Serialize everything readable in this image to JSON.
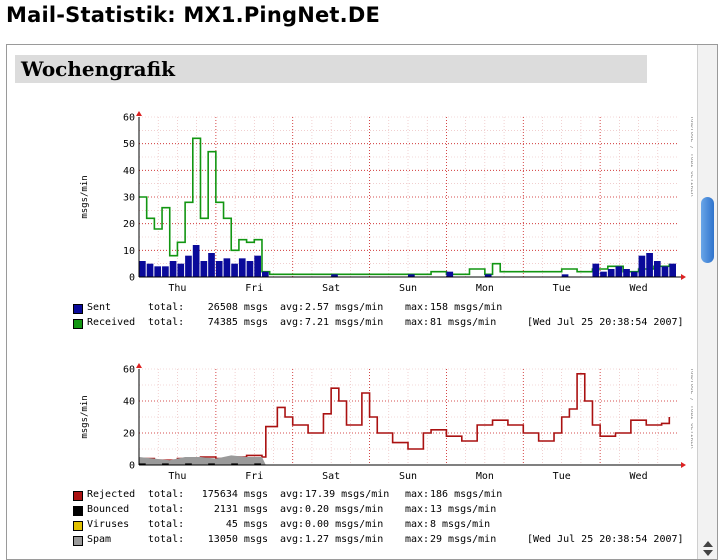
{
  "page": {
    "title": "Mail-Statistik: MX1.PingNet.DE",
    "section_heading": "Wochengrafik"
  },
  "graphs": [
    {
      "ylabel": "msgs/min",
      "watermark": "RRDTOOL / TOBI OETIKER",
      "yticks": [
        "0",
        "10",
        "20",
        "30",
        "40",
        "50",
        "60"
      ],
      "xticks": [
        "Thu",
        "Fri",
        "Sat",
        "Sun",
        "Mon",
        "Tue",
        "Wed"
      ],
      "legend": [
        {
          "name": "Sent",
          "color": "#0a0a9a",
          "total": "26508 msgs",
          "avg": "2.57 msgs/min",
          "max": "158 msgs/min",
          "timestamp": ""
        },
        {
          "name": "Received",
          "color": "#129612",
          "total": "74385 msgs",
          "avg": "7.21 msgs/min",
          "max": "81 msgs/min",
          "timestamp": "[Wed Jul 25 20:38:54 2007]"
        }
      ]
    },
    {
      "ylabel": "msgs/min",
      "watermark": "RRDTOOL / TOBI OETIKER",
      "yticks": [
        "0",
        "20",
        "40",
        "60"
      ],
      "xticks": [
        "Thu",
        "Fri",
        "Sat",
        "Sun",
        "Mon",
        "Tue",
        "Wed"
      ],
      "legend": [
        {
          "name": "Rejected",
          "color": "#aa1111",
          "total": "175634 msgs",
          "avg": "17.39 msgs/min",
          "max": "186 msgs/min",
          "timestamp": ""
        },
        {
          "name": "Bounced",
          "color": "#000000",
          "total": "2131 msgs",
          "avg": "0.20 msgs/min",
          "max": "13 msgs/min",
          "timestamp": ""
        },
        {
          "name": "Viruses",
          "color": "#e0c000",
          "total": "45 msgs",
          "avg": "0.00 msgs/min",
          "max": "8 msgs/min",
          "timestamp": ""
        },
        {
          "name": "Spam",
          "color": "#9a9a9a",
          "total": "13050 msgs",
          "avg": "1.27 msgs/min",
          "max": "29 msgs/min",
          "timestamp": "[Wed Jul 25 20:38:54 2007]"
        }
      ]
    }
  ],
  "legend_labels": {
    "total": "total:",
    "avg": "avg:",
    "max": "max:"
  },
  "chart_data": [
    {
      "type": "area",
      "xlabel": "",
      "ylabel": "msgs/min",
      "ylim": [
        0,
        60
      ],
      "grid": true,
      "legend": "bottom",
      "x_day_ticks": [
        "Thu",
        "Fri",
        "Sat",
        "Sun",
        "Mon",
        "Tue",
        "Wed"
      ],
      "x_day_tick_position": [
        0.5,
        1.5,
        2.5,
        3.5,
        4.5,
        5.5,
        6.5
      ],
      "series": [
        {
          "name": "Received",
          "color": "#129612",
          "style": "line",
          "x": [
            0,
            0.1,
            0.2,
            0.3,
            0.4,
            0.5,
            0.6,
            0.7,
            0.8,
            0.9,
            1.0,
            1.1,
            1.2,
            1.3,
            1.4,
            1.5,
            1.6,
            1.7,
            1.8,
            1.9,
            2.0,
            2.2,
            2.5,
            3.0,
            3.5,
            3.8,
            4.0,
            4.3,
            4.5,
            4.6,
            4.7,
            4.9,
            5.2,
            5.5,
            5.7,
            5.9,
            6.1,
            6.3,
            6.5,
            6.7,
            6.9
          ],
          "values": [
            30,
            22,
            18,
            26,
            8,
            13,
            28,
            52,
            22,
            47,
            28,
            22,
            10,
            14,
            13,
            14,
            2,
            1,
            1,
            1,
            1,
            1,
            1,
            1,
            1,
            2,
            1,
            3,
            1,
            5,
            2,
            2,
            2,
            3,
            2,
            3,
            4,
            2,
            3,
            4,
            5
          ]
        },
        {
          "name": "Sent",
          "color": "#0a0a9a",
          "style": "bars",
          "x": [
            0,
            0.1,
            0.2,
            0.3,
            0.4,
            0.5,
            0.6,
            0.7,
            0.8,
            0.9,
            1.0,
            1.1,
            1.2,
            1.3,
            1.4,
            1.5,
            1.6,
            1.8,
            2.0,
            2.5,
            3.0,
            3.5,
            4.0,
            4.5,
            5.0,
            5.5,
            5.9,
            6.0,
            6.1,
            6.2,
            6.3,
            6.4,
            6.5,
            6.6,
            6.7,
            6.8,
            6.9
          ],
          "values": [
            6,
            5,
            4,
            4,
            6,
            5,
            8,
            12,
            6,
            9,
            6,
            7,
            5,
            7,
            6,
            8,
            2,
            0,
            0,
            1,
            0,
            1,
            2,
            1,
            0,
            1,
            5,
            2,
            3,
            4,
            3,
            2,
            8,
            9,
            6,
            4,
            5
          ]
        }
      ]
    },
    {
      "type": "area",
      "xlabel": "",
      "ylabel": "msgs/min",
      "ylim": [
        0,
        60
      ],
      "grid": true,
      "legend": "bottom",
      "x_day_ticks": [
        "Thu",
        "Fri",
        "Sat",
        "Sun",
        "Mon",
        "Tue",
        "Wed"
      ],
      "x_day_tick_position": [
        0.5,
        1.5,
        2.5,
        3.5,
        4.5,
        5.5,
        6.5
      ],
      "series": [
        {
          "name": "Rejected",
          "color": "#aa1111",
          "style": "line",
          "x": [
            0,
            0.2,
            0.5,
            0.8,
            1.0,
            1.2,
            1.4,
            1.6,
            1.65,
            1.8,
            1.9,
            2.0,
            2.2,
            2.4,
            2.5,
            2.6,
            2.7,
            2.9,
            3.0,
            3.1,
            3.3,
            3.5,
            3.7,
            3.8,
            4.0,
            4.2,
            4.4,
            4.6,
            4.8,
            5.0,
            5.2,
            5.4,
            5.5,
            5.6,
            5.7,
            5.8,
            5.9,
            6.0,
            6.2,
            6.4,
            6.6,
            6.8,
            6.9
          ],
          "values": [
            4,
            3,
            4,
            5,
            4,
            5,
            6,
            5,
            24,
            36,
            30,
            25,
            20,
            32,
            48,
            40,
            25,
            45,
            30,
            20,
            14,
            10,
            20,
            22,
            18,
            15,
            25,
            28,
            25,
            20,
            15,
            20,
            30,
            35,
            57,
            40,
            25,
            18,
            20,
            28,
            25,
            26,
            30
          ]
        },
        {
          "name": "Spam",
          "color": "#9a9a9a",
          "style": "area",
          "x": [
            0,
            0.2,
            0.4,
            0.6,
            0.8,
            1.0,
            1.2,
            1.4,
            1.6,
            1.65,
            1.7,
            7.0
          ],
          "values": [
            5,
            4,
            3,
            5,
            5,
            4,
            6,
            5,
            5,
            0,
            0,
            0
          ]
        },
        {
          "name": "Bounced",
          "color": "#000000",
          "style": "bars",
          "x": [
            0,
            0.3,
            0.6,
            0.9,
            1.2,
            1.5
          ],
          "values": [
            1,
            1,
            1,
            1,
            1,
            1
          ]
        },
        {
          "name": "Viruses",
          "color": "#e0c000",
          "style": "bars",
          "x": [],
          "values": []
        }
      ]
    }
  ]
}
